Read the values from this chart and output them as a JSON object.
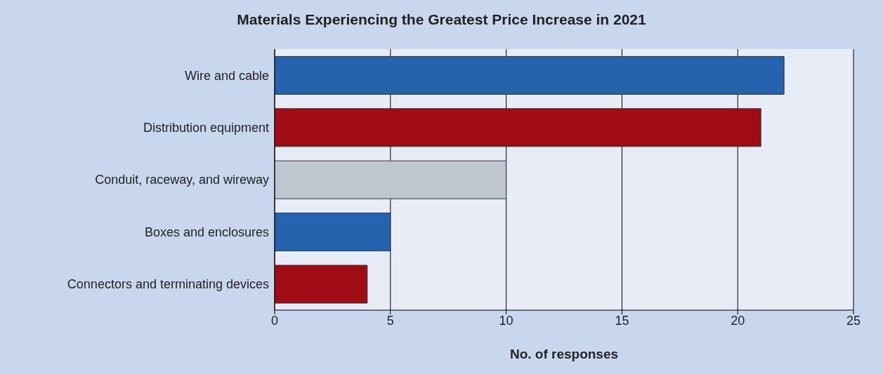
{
  "chart_data": {
    "type": "bar",
    "orientation": "horizontal",
    "title": "Materials Experiencing the Greatest Price Increase in 2021",
    "categories": [
      "Wire and cable",
      "Distribution equipment",
      "Conduit, raceway, and wireway",
      "Boxes and enclosures",
      "Connectors and terminating devices"
    ],
    "values": [
      22,
      21,
      10,
      5,
      4
    ],
    "colors": [
      "#2563ae",
      "#a00c14",
      "#bec6d0",
      "#2563ae",
      "#a00c14"
    ],
    "xlabel": "No. of responses",
    "xlim": [
      0,
      25
    ],
    "xticks": [
      0,
      5,
      10,
      15,
      20,
      25
    ],
    "grid": "x"
  }
}
